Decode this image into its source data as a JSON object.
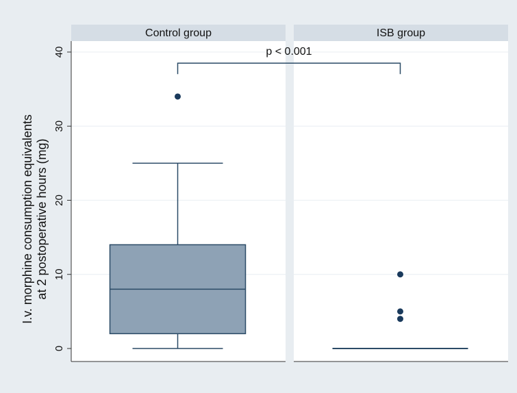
{
  "chart_data": {
    "type": "box",
    "ylabel_line1": "I.v. morphine consumption equivalents",
    "ylabel_line2": "at 2 postoperative hours (mg)",
    "ylim": [
      0,
      40
    ],
    "yticks": [
      0,
      10,
      20,
      30,
      40
    ],
    "grid": true,
    "panels": [
      {
        "label": "Control group",
        "box": {
          "whisker_low": 0,
          "q1": 2,
          "median": 8,
          "q3": 14,
          "whisker_high": 25
        },
        "outliers": [
          34
        ]
      },
      {
        "label": "ISB group",
        "box": {
          "whisker_low": 0,
          "q1": 0,
          "median": 0,
          "q3": 0,
          "whisker_high": 0
        },
        "outliers": [
          4,
          5,
          10
        ]
      }
    ],
    "annotation": {
      "text": "p < 0.001",
      "y": 38.5
    },
    "colors": {
      "background": "#e8edf1",
      "plot": "#ffffff",
      "strip": "#d5dde5",
      "box_fill": "#8ea2b5",
      "lines": "#2a4a66",
      "points": "#1a3a5c",
      "grid": "#edf1f4"
    }
  }
}
